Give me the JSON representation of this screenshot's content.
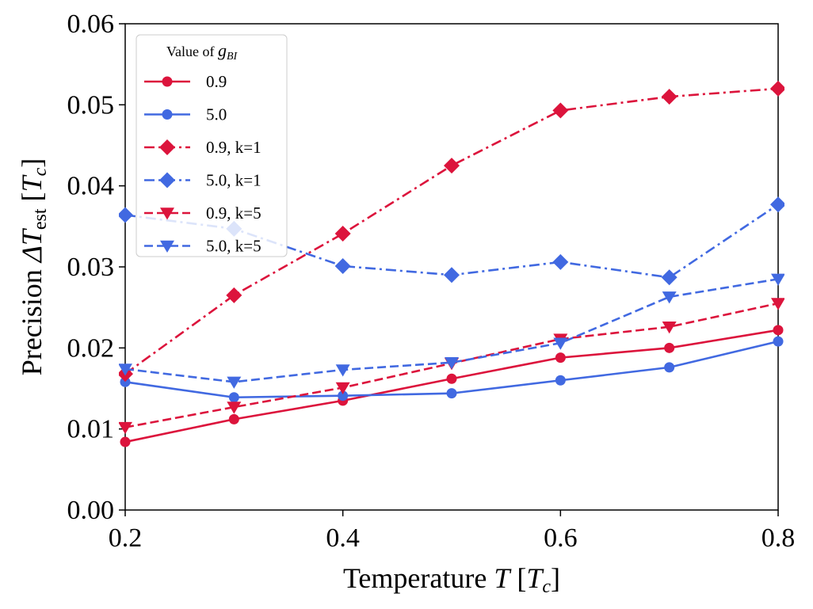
{
  "chart_data": {
    "type": "line",
    "xlabel_prefix": "Temperature ",
    "xlabel_math": "T",
    "xlabel_unit_open": " [",
    "xlabel_unit_math": "T",
    "xlabel_unit_sub": "c",
    "xlabel_unit_close": "]",
    "ylabel_prefix": "Precision ",
    "ylabel_math": "ΔT",
    "ylabel_sub": "est",
    "ylabel_unit_open": " [",
    "ylabel_unit_math": "T",
    "ylabel_unit_sub": "c",
    "ylabel_unit_close": "]",
    "xlim": [
      0.2,
      0.8
    ],
    "ylim": [
      0.0,
      0.06
    ],
    "xticks": [
      "0.2",
      "0.4",
      "0.6",
      "0.8"
    ],
    "yticks": [
      "0.00",
      "0.01",
      "0.02",
      "0.03",
      "0.04",
      "0.05",
      "0.06"
    ],
    "grid": false,
    "legend": {
      "placement": "top-left",
      "title_prefix": "Value of ",
      "title_math": "g",
      "title_sub": "BI"
    },
    "x": [
      0.2,
      0.3,
      0.4,
      0.5,
      0.6,
      0.7,
      0.8
    ],
    "series": [
      {
        "name": "0.9",
        "color": "#DC143C",
        "linestyle": "solid",
        "marker": "circle",
        "values": [
          0.0084,
          0.0112,
          0.0135,
          0.0162,
          0.0188,
          0.02,
          0.0222
        ]
      },
      {
        "name": "5.0",
        "color": "#4169E1",
        "linestyle": "solid",
        "marker": "circle",
        "values": [
          0.0158,
          0.0139,
          0.0141,
          0.0144,
          0.016,
          0.0176,
          0.0208
        ]
      },
      {
        "name": "0.9, k=1",
        "color": "#DC143C",
        "linestyle": "dashdot",
        "marker": "diamond",
        "values": [
          0.0168,
          0.0265,
          0.0341,
          0.0425,
          0.0493,
          0.051,
          0.052
        ]
      },
      {
        "name": "5.0, k=1",
        "color": "#4169E1",
        "linestyle": "dashdot",
        "marker": "diamond",
        "values": [
          0.0364,
          0.0347,
          0.0301,
          0.029,
          0.0306,
          0.0287,
          0.0377
        ]
      },
      {
        "name": "0.9, k=5",
        "color": "#DC143C",
        "linestyle": "dashed",
        "marker": "triangle-down",
        "values": [
          0.0102,
          0.0127,
          0.0151,
          0.0181,
          0.0211,
          0.0226,
          0.0255
        ]
      },
      {
        "name": "5.0, k=5",
        "color": "#4169E1",
        "linestyle": "dashed",
        "marker": "triangle-down",
        "values": [
          0.0174,
          0.0158,
          0.0173,
          0.0182,
          0.0206,
          0.0263,
          0.0285
        ]
      }
    ]
  }
}
